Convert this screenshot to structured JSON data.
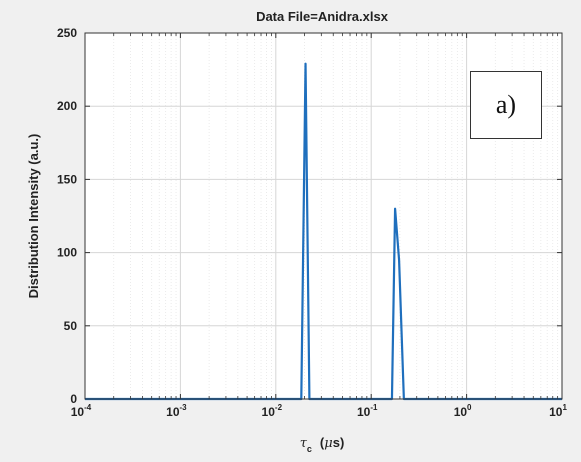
{
  "chart_data": {
    "type": "line",
    "title": "Data File=Anidra.xlsx",
    "xlabel": {
      "symbol": "τ",
      "subscript": "c",
      "unit_open": "(",
      "unit_mu": "μ",
      "unit_rest": "s)"
    },
    "ylabel": "Distribution Intensity (a.u.)",
    "xscale": "log",
    "xlim": [
      0.0001,
      10
    ],
    "ylim": [
      0,
      250
    ],
    "x_ticks": [
      {
        "base": "10",
        "exp": "-4"
      },
      {
        "base": "10",
        "exp": "-3"
      },
      {
        "base": "10",
        "exp": "-2"
      },
      {
        "base": "10",
        "exp": "-1"
      },
      {
        "base": "10",
        "exp": "0"
      },
      {
        "base": "10",
        "exp": "1"
      }
    ],
    "y_ticks": [
      "0",
      "50",
      "100",
      "150",
      "200",
      "250"
    ],
    "grid": true,
    "series_color": "#1f6fbd",
    "series": [
      {
        "x": [
          0.0001,
          0.017,
          0.0185,
          0.0205,
          0.0225,
          0.0245,
          0.13,
          0.148,
          0.165,
          0.178,
          0.196,
          0.22,
          0.24,
          10
        ],
        "y": [
          0,
          0,
          0,
          229,
          0,
          0,
          0,
          0,
          0,
          130,
          95,
          0,
          0,
          0
        ]
      }
    ],
    "annotation": "a)"
  }
}
